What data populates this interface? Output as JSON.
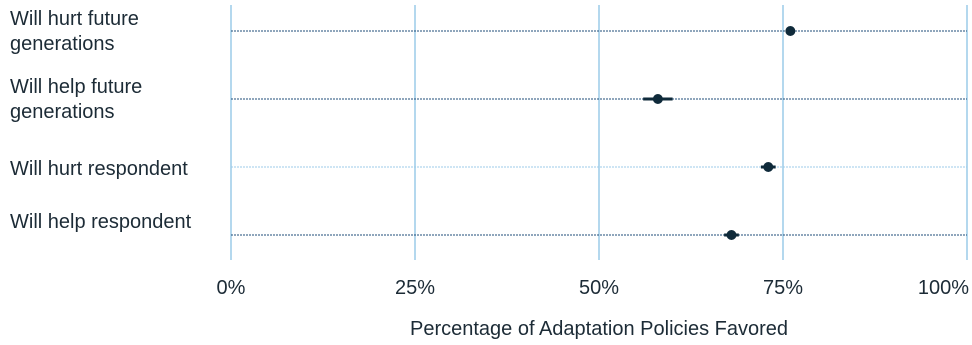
{
  "chart_data": {
    "type": "scatter",
    "subtype": "dot-with-error-bars",
    "title": "",
    "xlabel": "Percentage of Adaptation Policies Favored",
    "xlim": [
      0,
      100
    ],
    "x_ticks": [
      0,
      25,
      50,
      75,
      100
    ],
    "x_tick_labels": [
      "0%",
      "25%",
      "50%",
      "75%",
      "100%"
    ],
    "grid": "vertical",
    "categories": [
      {
        "label_lines": [
          "Will hurt future",
          "generations"
        ],
        "value": 76,
        "ci": [
          75.5,
          76.5
        ]
      },
      {
        "label_lines": [
          "Will help future",
          "generations"
        ],
        "value": 58,
        "ci": [
          56,
          60
        ]
      },
      {
        "label_lines": [
          "Will hurt respondent"
        ],
        "value": 73,
        "ci": [
          72,
          74
        ]
      },
      {
        "label_lines": [
          "Will help respondent"
        ],
        "value": 68,
        "ci": [
          67,
          69
        ]
      }
    ],
    "colors": {
      "grid": "#9ccbe8",
      "row_line": "#1f4e79",
      "point": "#0f2a3a",
      "text": "#1c2b36"
    }
  }
}
